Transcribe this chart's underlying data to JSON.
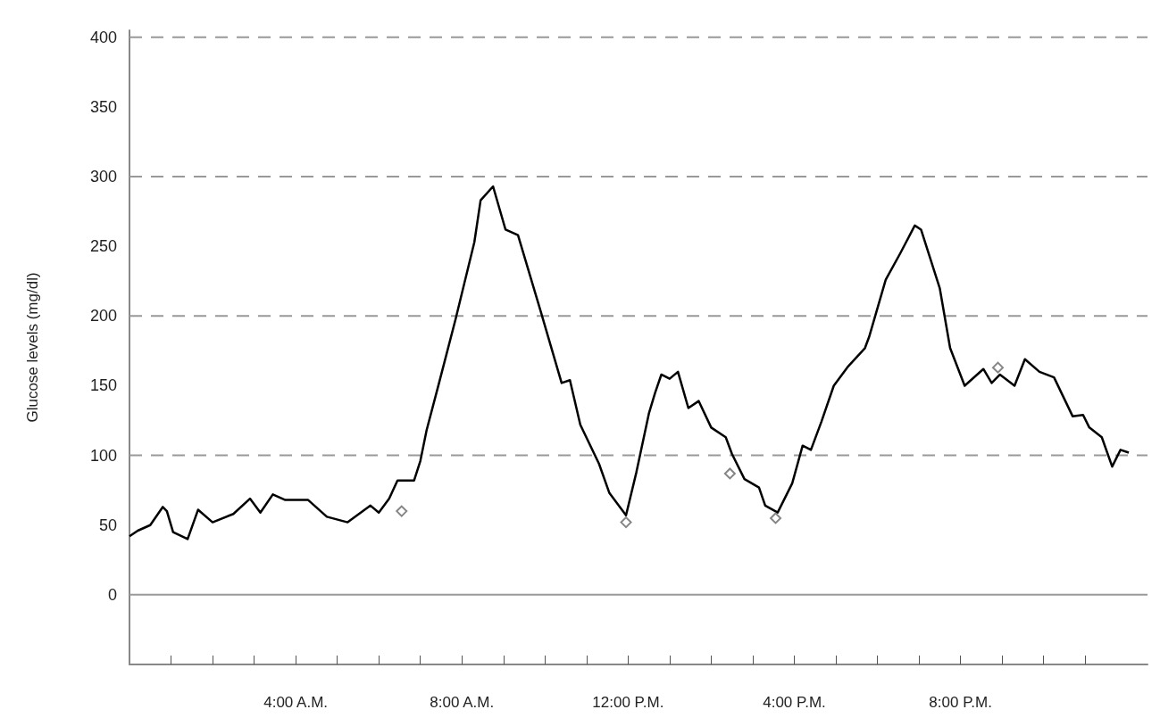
{
  "chart_data": {
    "type": "line",
    "ylabel": "Glucose levels (mg/dl)",
    "xlim": [
      0,
      24.5
    ],
    "xticks": [
      {
        "value": 1,
        "label": null
      },
      {
        "value": 2,
        "label": null
      },
      {
        "value": 3,
        "label": null
      },
      {
        "value": 4,
        "label": "4:00 A.M."
      },
      {
        "value": 5,
        "label": null
      },
      {
        "value": 6,
        "label": null
      },
      {
        "value": 7,
        "label": null
      },
      {
        "value": 8,
        "label": "8:00 A.M."
      },
      {
        "value": 9,
        "label": null
      },
      {
        "value": 10,
        "label": null
      },
      {
        "value": 11,
        "label": null
      },
      {
        "value": 12,
        "label": "12:00 P.M."
      },
      {
        "value": 13,
        "label": null
      },
      {
        "value": 14,
        "label": null
      },
      {
        "value": 15,
        "label": null
      },
      {
        "value": 16,
        "label": "4:00 P.M."
      },
      {
        "value": 17,
        "label": null
      },
      {
        "value": 18,
        "label": null
      },
      {
        "value": 19,
        "label": null
      },
      {
        "value": 20,
        "label": "8:00 P.M."
      },
      {
        "value": 21,
        "label": null
      },
      {
        "value": 22,
        "label": null
      },
      {
        "value": 23,
        "label": null
      }
    ],
    "ylim": [
      -50,
      405
    ],
    "yticks": [
      0,
      50,
      100,
      150,
      200,
      250,
      300,
      350,
      400
    ],
    "grid": false,
    "ref_lines": [
      {
        "axis": "y",
        "value": 0,
        "color": "#999999",
        "line_style": "solid"
      },
      {
        "axis": "y",
        "value": 100,
        "color": "#999999",
        "line_style": "dashed"
      },
      {
        "axis": "y",
        "value": 200,
        "color": "#999999",
        "line_style": "dashed"
      },
      {
        "axis": "y",
        "value": 300,
        "color": "#999999",
        "line_style": "dashed"
      },
      {
        "axis": "y",
        "value": 400,
        "color": "#999999",
        "line_style": "dashed"
      }
    ],
    "series": [
      {
        "color": "#000000",
        "marker": "none",
        "x": [
          0,
          0.2,
          0.5,
          0.8,
          0.9,
          1.05,
          1.4,
          1.65,
          2.0,
          2.5,
          2.9,
          3.15,
          3.45,
          3.75,
          4.3,
          4.75,
          5.25,
          5.8,
          6.0,
          6.25,
          6.45,
          6.85,
          7.0,
          7.15,
          7.45,
          7.85,
          8.3,
          8.45,
          8.75,
          9.05,
          9.35,
          9.9,
          10.4,
          10.6,
          10.85,
          11.3,
          11.55,
          11.95,
          12.2,
          12.5,
          12.65,
          12.8,
          13.0,
          13.2,
          13.45,
          13.7,
          14.0,
          14.35,
          14.5,
          14.8,
          15.15,
          15.3,
          15.6,
          15.95,
          16.2,
          16.4,
          16.65,
          16.95,
          17.3,
          17.7,
          17.8,
          18.2,
          18.55,
          18.9,
          19.05,
          19.5,
          19.75,
          20.1,
          20.55,
          20.75,
          20.95,
          21.3,
          21.55,
          21.9,
          22.25,
          22.7,
          22.95,
          23.1,
          23.4,
          23.65,
          23.85,
          24.05
        ],
        "values": [
          42,
          46,
          50,
          63,
          60,
          45,
          40,
          61,
          52,
          58,
          69,
          59,
          72,
          68,
          68,
          56,
          52,
          64,
          59,
          69,
          82,
          82,
          96,
          118,
          152,
          198,
          253,
          283,
          293,
          262,
          258,
          203,
          152,
          154,
          122,
          94,
          73,
          57,
          88,
          130,
          145,
          158,
          155,
          160,
          134,
          139,
          120,
          113,
          101,
          83,
          77,
          64,
          59,
          80,
          107,
          104,
          124,
          150,
          164,
          177,
          185,
          226,
          245,
          265,
          262,
          220,
          177,
          150,
          162,
          152,
          158,
          150,
          169,
          160,
          156,
          128,
          129,
          120,
          113,
          92,
          104,
          102
        ]
      },
      {
        "type": "scatter",
        "color": "#666666",
        "marker": "diamond",
        "x": [
          6.55,
          11.95,
          14.45,
          15.55,
          20.9
        ],
        "values": [
          60,
          52,
          87,
          55,
          163
        ]
      }
    ]
  }
}
